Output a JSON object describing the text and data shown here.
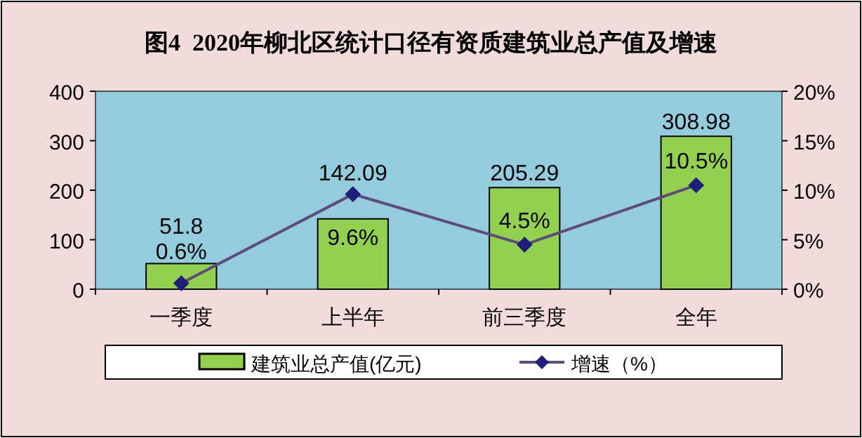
{
  "chart_data": {
    "type": "bar",
    "title": "图4  2020年柳北区统计口径有资质建筑业总产值及增速",
    "categories": [
      "一季度",
      "上半年",
      "前三季度",
      "全年"
    ],
    "series": [
      {
        "name": "建筑业总产值(亿元)",
        "color": "#92d050",
        "values": [
          51.8,
          142.09,
          205.29,
          308.98
        ],
        "value_labels": [
          "51.8",
          "142.09",
          "205.29",
          "308.98"
        ]
      },
      {
        "name": "增速（%）",
        "type": "line",
        "axis": "y2",
        "color": "#604a7b",
        "marker": "diamond",
        "values": [
          0.6,
          9.6,
          4.5,
          10.5
        ],
        "value_labels": [
          "0.6%",
          "9.6%",
          "4.5%",
          "10.5%"
        ]
      }
    ],
    "ylim": [
      0,
      400
    ],
    "yticks": [
      0,
      100,
      200,
      300,
      400
    ],
    "y2lim": [
      0,
      20
    ],
    "y2ticks": [
      {
        "value": 0,
        "label": "0%"
      },
      {
        "value": 5,
        "label": "5%"
      },
      {
        "value": 10,
        "label": "10%"
      },
      {
        "value": 15,
        "label": "15%"
      },
      {
        "value": 20,
        "label": "20%"
      }
    ],
    "grid": false,
    "legend": "bottom"
  }
}
